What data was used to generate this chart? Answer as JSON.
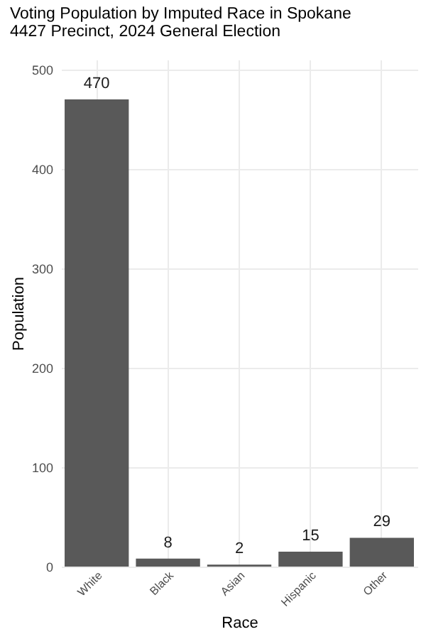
{
  "chart_data": {
    "type": "bar",
    "title": "Voting Population by Imputed Race in Spokane",
    "subtitle": "4427 Precinct,  2024 General Election",
    "xlabel": "Race",
    "ylabel": "Population",
    "categories": [
      "White",
      "Black",
      "Asian",
      "Hispanic",
      "Other"
    ],
    "values": [
      470,
      8,
      2,
      15,
      29
    ],
    "color": "#595959",
    "ylim": [
      0,
      510
    ],
    "yticks": [
      0,
      100,
      200,
      300,
      400,
      500
    ],
    "grid": true,
    "data_labels": true
  }
}
